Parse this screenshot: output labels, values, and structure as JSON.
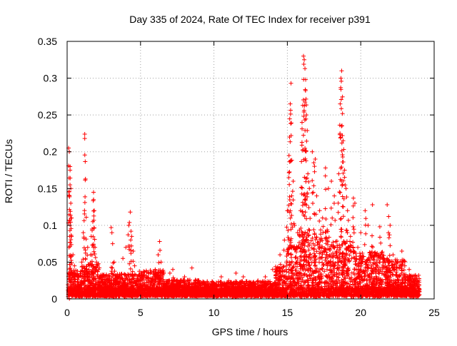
{
  "chart_data": {
    "type": "scatter",
    "title": "Day 335 of 2024, Rate Of TEC Index for receiver p391",
    "xlabel": "GPS time / hours",
    "ylabel": "ROTI / TECUs",
    "xlim": [
      0,
      25
    ],
    "ylim": [
      0,
      0.35
    ],
    "xticks": [
      0,
      5,
      10,
      15,
      20,
      25
    ],
    "xtick_labels": [
      "0",
      "5",
      "10",
      "15",
      "20",
      "25"
    ],
    "yticks": [
      0,
      0.05,
      0.1,
      0.15,
      0.2,
      0.25,
      0.3,
      0.35
    ],
    "ytick_labels": [
      "0",
      "0.05",
      "0.1",
      "0.15",
      "0.2",
      "0.25",
      "0.3",
      "0.35"
    ],
    "grid": true,
    "marker": "+",
    "marker_color": "#ff0000",
    "series": [
      {
        "name": "ROTI",
        "color": "#ff0000",
        "description_points": [
          [
            0.1,
            0.205
          ],
          [
            0.15,
            0.2
          ],
          [
            0.2,
            0.18
          ],
          [
            0.2,
            0.175
          ],
          [
            0.25,
            0.15
          ],
          [
            0.25,
            0.13
          ],
          [
            0.3,
            0.11
          ],
          [
            0.2,
            0.1
          ],
          [
            0.3,
            0.085
          ],
          [
            0.4,
            0.06
          ],
          [
            0.5,
            0.045
          ],
          [
            0.6,
            0.035
          ],
          [
            0.8,
            0.03
          ],
          [
            1.0,
            0.05
          ],
          [
            1.1,
            0.09
          ],
          [
            1.15,
            0.082
          ],
          [
            1.2,
            0.224
          ],
          [
            1.2,
            0.218
          ],
          [
            1.25,
            0.163
          ],
          [
            1.4,
            0.07
          ],
          [
            1.6,
            0.06
          ],
          [
            1.7,
            0.095
          ],
          [
            1.75,
            0.105
          ],
          [
            1.8,
            0.145
          ],
          [
            1.8,
            0.135
          ],
          [
            1.85,
            0.12
          ],
          [
            1.9,
            0.07
          ],
          [
            2.0,
            0.05
          ],
          [
            2.3,
            0.03
          ],
          [
            2.6,
            0.02
          ],
          [
            3.0,
            0.097
          ],
          [
            3.05,
            0.09
          ],
          [
            3.1,
            0.075
          ],
          [
            3.2,
            0.05
          ],
          [
            3.5,
            0.03
          ],
          [
            3.8,
            0.055
          ],
          [
            4.0,
            0.07
          ],
          [
            4.2,
            0.1
          ],
          [
            4.3,
            0.118
          ],
          [
            4.35,
            0.092
          ],
          [
            4.4,
            0.085
          ],
          [
            4.5,
            0.065
          ],
          [
            4.6,
            0.045
          ],
          [
            5.0,
            0.03
          ],
          [
            5.5,
            0.025
          ],
          [
            6.0,
            0.04
          ],
          [
            6.2,
            0.06
          ],
          [
            6.3,
            0.078
          ],
          [
            6.4,
            0.05
          ],
          [
            6.8,
            0.02
          ],
          [
            7.0,
            0.035
          ],
          [
            7.2,
            0.04
          ],
          [
            7.5,
            0.025
          ],
          [
            8.0,
            0.03
          ],
          [
            8.5,
            0.042
          ],
          [
            9.0,
            0.02
          ],
          [
            9.5,
            0.015
          ],
          [
            10.0,
            0.02
          ],
          [
            10.5,
            0.03
          ],
          [
            11.0,
            0.025
          ],
          [
            11.5,
            0.035
          ],
          [
            12.0,
            0.03
          ],
          [
            12.5,
            0.02
          ],
          [
            13.0,
            0.025
          ],
          [
            13.5,
            0.03
          ],
          [
            14.0,
            0.04
          ],
          [
            14.5,
            0.06
          ],
          [
            14.8,
            0.08
          ],
          [
            15.0,
            0.12
          ],
          [
            15.1,
            0.165
          ],
          [
            15.15,
            0.22
          ],
          [
            15.2,
            0.265
          ],
          [
            15.25,
            0.293
          ],
          [
            15.3,
            0.14
          ],
          [
            15.4,
            0.16
          ],
          [
            15.5,
            0.1
          ],
          [
            15.7,
            0.09
          ],
          [
            15.9,
            0.12
          ],
          [
            16.0,
            0.24
          ],
          [
            16.05,
            0.263
          ],
          [
            16.1,
            0.33
          ],
          [
            16.15,
            0.325
          ],
          [
            16.2,
            0.313
          ],
          [
            16.25,
            0.298
          ],
          [
            16.3,
            0.25
          ],
          [
            16.4,
            0.17
          ],
          [
            16.5,
            0.15
          ],
          [
            16.7,
            0.2
          ],
          [
            16.8,
            0.185
          ],
          [
            16.9,
            0.19
          ],
          [
            17.0,
            0.14
          ],
          [
            17.2,
            0.12
          ],
          [
            17.4,
            0.11
          ],
          [
            17.6,
            0.178
          ],
          [
            17.8,
            0.15
          ],
          [
            18.0,
            0.16
          ],
          [
            18.2,
            0.14
          ],
          [
            18.5,
            0.17
          ],
          [
            18.6,
            0.265
          ],
          [
            18.65,
            0.3
          ],
          [
            18.7,
            0.31
          ],
          [
            18.75,
            0.222
          ],
          [
            18.8,
            0.215
          ],
          [
            18.9,
            0.175
          ],
          [
            19.0,
            0.15
          ],
          [
            19.1,
            0.12
          ],
          [
            19.3,
            0.085
          ],
          [
            19.5,
            0.137
          ],
          [
            19.6,
            0.13
          ],
          [
            19.8,
            0.07
          ],
          [
            20.0,
            0.09
          ],
          [
            20.3,
            0.12
          ],
          [
            20.5,
            0.1
          ],
          [
            20.8,
            0.128
          ],
          [
            21.0,
            0.06
          ],
          [
            21.3,
            0.098
          ],
          [
            21.5,
            0.05
          ],
          [
            21.8,
            0.128
          ],
          [
            21.9,
            0.112
          ],
          [
            22.0,
            0.1
          ],
          [
            22.2,
            0.06
          ],
          [
            22.5,
            0.05
          ],
          [
            22.8,
            0.065
          ],
          [
            23.0,
            0.045
          ],
          [
            23.3,
            0.04
          ],
          [
            23.5,
            0.03
          ],
          [
            23.8,
            0.02
          ],
          [
            24.0,
            0.01
          ]
        ]
      }
    ]
  }
}
